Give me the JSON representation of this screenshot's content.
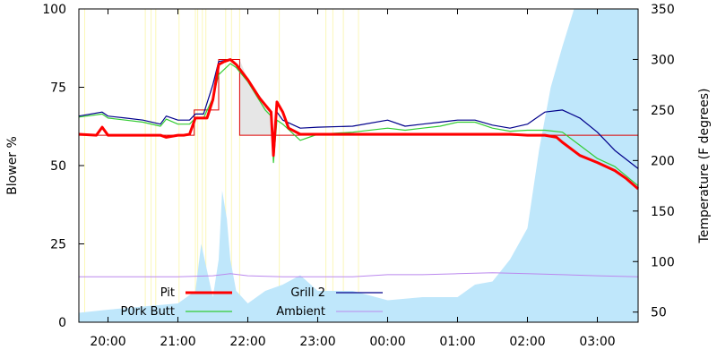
{
  "chart_data": {
    "type": "line",
    "title": "",
    "ylabel": "Blower %",
    "y2label": "Temperature (F degrees)",
    "xlabel": "",
    "x_ticks": [
      "20:00",
      "21:00",
      "22:00",
      "23:00",
      "00:00",
      "01:00",
      "02:00",
      "03:00"
    ],
    "y_ticks": [
      0,
      25,
      50,
      75,
      100
    ],
    "y2_ticks": [
      50,
      100,
      150,
      200,
      250,
      300,
      350
    ],
    "ylim": [
      0,
      100
    ],
    "y2lim": [
      40,
      350
    ],
    "grid": false,
    "legend_position": "bottom-left",
    "series": [
      {
        "name": "Pit",
        "color": "#ff0000",
        "axis": "temp",
        "x": [
          "19:35",
          "19:50",
          "19:55",
          "20:00",
          "20:15",
          "20:30",
          "20:45",
          "20:50",
          "21:00",
          "21:05",
          "21:10",
          "21:15",
          "21:22",
          "21:25",
          "21:30",
          "21:35",
          "21:40",
          "21:45",
          "21:50",
          "22:00",
          "22:10",
          "22:15",
          "22:20",
          "22:22",
          "22:25",
          "22:30",
          "22:35",
          "22:45",
          "23:00",
          "23:30",
          "00:00",
          "00:30",
          "01:00",
          "01:30",
          "01:45",
          "02:00",
          "02:15",
          "02:25",
          "02:30",
          "02:45",
          "03:00",
          "03:15",
          "03:25",
          "03:35"
        ],
        "values": [
          226,
          225,
          233,
          225,
          225,
          225,
          225,
          223,
          225,
          225,
          226,
          242,
          242,
          242,
          260,
          295,
          298,
          300,
          295,
          280,
          262,
          255,
          248,
          205,
          258,
          248,
          232,
          226,
          226,
          226,
          226,
          226,
          226,
          226,
          226,
          225,
          225,
          223,
          218,
          205,
          198,
          190,
          182,
          172
        ]
      },
      {
        "name": "Grill 2",
        "color": "#00008b",
        "axis": "temp",
        "x": [
          "19:35",
          "19:55",
          "20:00",
          "20:15",
          "20:30",
          "20:45",
          "20:50",
          "21:00",
          "21:10",
          "21:15",
          "21:22",
          "21:30",
          "21:35",
          "21:45",
          "21:50",
          "22:00",
          "22:15",
          "22:20",
          "22:22",
          "22:25",
          "22:30",
          "22:45",
          "23:00",
          "23:30",
          "00:00",
          "00:15",
          "00:30",
          "00:45",
          "01:00",
          "01:15",
          "01:30",
          "01:45",
          "02:00",
          "02:15",
          "02:30",
          "02:45",
          "03:00",
          "03:15",
          "03:35"
        ],
        "values": [
          244,
          248,
          244,
          242,
          240,
          236,
          244,
          240,
          240,
          246,
          246,
          275,
          298,
          300,
          295,
          280,
          255,
          248,
          210,
          248,
          240,
          232,
          233,
          234,
          240,
          234,
          236,
          238,
          240,
          240,
          235,
          232,
          236,
          248,
          250,
          242,
          228,
          210,
          192
        ]
      },
      {
        "name": "P0rk Butt",
        "color": "#33cc33",
        "axis": "temp",
        "x": [
          "19:35",
          "19:55",
          "20:00",
          "20:15",
          "20:30",
          "20:45",
          "20:50",
          "21:00",
          "21:10",
          "21:15",
          "21:22",
          "21:30",
          "21:35",
          "21:45",
          "21:50",
          "22:00",
          "22:15",
          "22:20",
          "22:22",
          "22:25",
          "22:30",
          "22:45",
          "23:00",
          "23:30",
          "00:00",
          "00:15",
          "00:30",
          "00:45",
          "01:00",
          "01:15",
          "01:30",
          "01:45",
          "02:00",
          "02:15",
          "02:30",
          "02:45",
          "03:00",
          "03:15",
          "03:35"
        ],
        "values": [
          243,
          246,
          242,
          240,
          238,
          234,
          241,
          236,
          236,
          242,
          242,
          262,
          285,
          296,
          292,
          278,
          250,
          244,
          198,
          240,
          236,
          220,
          226,
          228,
          232,
          230,
          232,
          234,
          238,
          238,
          232,
          229,
          230,
          230,
          228,
          215,
          202,
          194,
          175
        ]
      },
      {
        "name": "Ambient",
        "color": "#bb88ee",
        "axis": "temp",
        "x": [
          "19:35",
          "20:00",
          "20:30",
          "21:00",
          "21:30",
          "21:45",
          "22:00",
          "22:30",
          "23:00",
          "23:30",
          "00:00",
          "00:30",
          "01:00",
          "01:30",
          "02:00",
          "02:30",
          "03:00",
          "03:35"
        ],
        "values": [
          85,
          85,
          85,
          85,
          86,
          88,
          86,
          85,
          85,
          85,
          87,
          87,
          88,
          89,
          88,
          87,
          86,
          85
        ]
      },
      {
        "name": "Blower",
        "color": "#bfe7fb",
        "axis": "percent",
        "style": "area",
        "x": [
          "19:35",
          "20:00",
          "20:30",
          "21:00",
          "21:15",
          "21:20",
          "21:30",
          "21:35",
          "21:38",
          "21:42",
          "21:45",
          "21:50",
          "22:00",
          "22:15",
          "22:30",
          "22:45",
          "23:00",
          "23:30",
          "00:00",
          "00:30",
          "01:00",
          "01:15",
          "01:30",
          "01:45",
          "02:00",
          "02:10",
          "02:20",
          "02:30",
          "02:40",
          "02:45",
          "02:50",
          "03:00",
          "03:10",
          "03:20",
          "03:35"
        ],
        "values": [
          3,
          4,
          5,
          6,
          10,
          25,
          8,
          20,
          42,
          33,
          20,
          10,
          6,
          10,
          12,
          15,
          10,
          10,
          7,
          8,
          8,
          12,
          13,
          20,
          30,
          55,
          75,
          88,
          100,
          100,
          100,
          100,
          100,
          100,
          100
        ]
      },
      {
        "name": "Setpoint",
        "color": "#dd0000",
        "axis": "temp",
        "style": "step",
        "x": [
          "19:35",
          "21:14",
          "21:14",
          "21:35",
          "21:35",
          "21:53",
          "21:53",
          "03:35"
        ],
        "values": [
          225,
          225,
          250,
          250,
          300,
          300,
          225,
          225
        ]
      }
    ],
    "legend": [
      "Pit",
      "P0rk Butt",
      "Grill 2",
      "Ambient"
    ]
  }
}
